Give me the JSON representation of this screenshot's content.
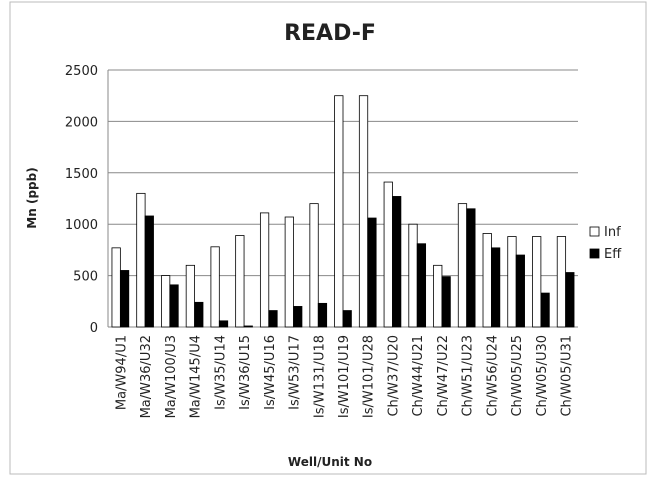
{
  "chart_data": {
    "type": "bar",
    "title": "READ-F",
    "x_label": "Well/Unit No",
    "y_label": "Mn (ppb)",
    "categories": [
      "Ma/W94/U1",
      "Ma/W36/U32",
      "Ma/W100/U3",
      "Ma/W145/U4",
      "Is/W35/U14",
      "Is/W36/U15",
      "Is/W45/U16",
      "Is/W53/U17",
      "Is/W131/U18",
      "Is/W101/U19",
      "Is/W101/U28",
      "Ch/W37/U20",
      "Ch/W44/U21",
      "Ch/W47/U22",
      "Ch/W51/U23",
      "Ch/W56/U24",
      "Ch/W05/U25",
      "Ch/W05/U30",
      "Ch/W05/U31"
    ],
    "series": [
      {
        "name": "Inf",
        "color": "#ffffff",
        "values": [
          770,
          1300,
          500,
          600,
          780,
          890,
          1110,
          1070,
          1200,
          2250,
          2250,
          1410,
          1000,
          600,
          1200,
          910,
          880,
          880,
          880
        ]
      },
      {
        "name": "Eff",
        "color": "#000000",
        "values": [
          550,
          1080,
          410,
          240,
          60,
          10,
          160,
          200,
          230,
          160,
          1060,
          1270,
          810,
          490,
          1150,
          770,
          700,
          330,
          530
        ]
      }
    ],
    "ylim": [
      0,
      2500
    ],
    "yticks": [
      0,
      500,
      1000,
      1500,
      2000,
      2500
    ],
    "grid": true,
    "legend": "right"
  }
}
